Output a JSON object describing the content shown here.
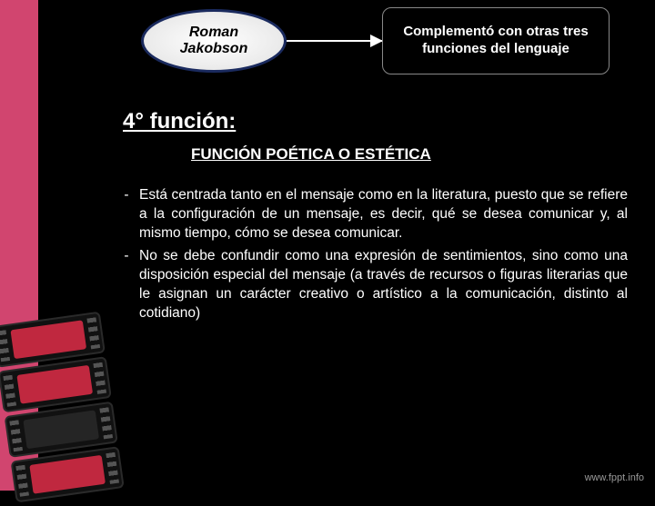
{
  "colors": {
    "background": "#000000",
    "pink": "#d1456f",
    "oval_border": "#1a2a5e",
    "text": "#ffffff",
    "watermark": "#9a9a9a"
  },
  "oval": {
    "line1": "Roman",
    "line2": "Jakobson"
  },
  "rect": {
    "text": "Complementó con otras tres funciones del lenguaje"
  },
  "heading": "4° función:",
  "subtitle": "FUNCIÓN POÉTICA O ESTÉTICA",
  "bullets": [
    "Está centrada tanto en el mensaje como en la literatura, puesto que se refiere a la configuración de un mensaje, es decir, qué se desea comunicar y, al mismo tiempo, cómo se desea comunicar.",
    "No se debe confundir como una expresión de sentimientos, sino como una disposición especial del mensaje (a través de recursos o figuras literarias que le asignan un carácter creativo o artístico a la comunicación, distinto al cotidiano)"
  ],
  "watermark": "www.fppt.info",
  "film_frames": [
    "#c0283f",
    "#c0283f",
    "#252525",
    "#c0283f"
  ]
}
